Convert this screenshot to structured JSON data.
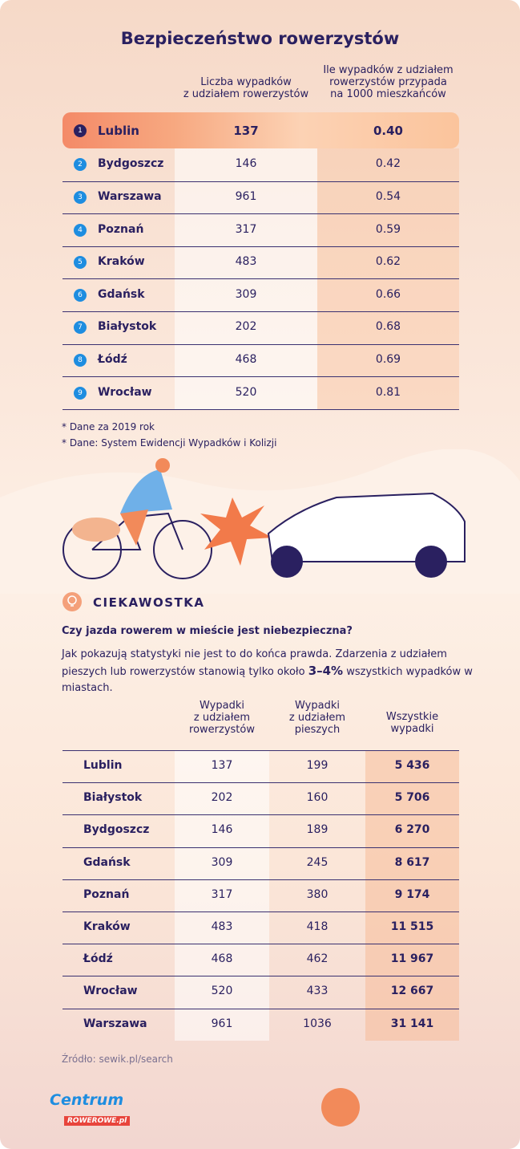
{
  "title": "Bezpieczeństwo rowerzystów",
  "table1": {
    "headers": [
      [
        "Liczba wypadków",
        "z udziałem rowerzystów"
      ],
      [
        "Ile wypadków  z udziałem",
        "rowerzystów przypada",
        "na 1000 mieszkańców"
      ]
    ],
    "rows": [
      [
        "1",
        "Lublin",
        "137",
        "0.40"
      ],
      [
        "2",
        "Bydgoszcz",
        "146",
        "0.42"
      ],
      [
        "3",
        "Warszawa",
        "961",
        "0.54"
      ],
      [
        "4",
        "Poznań",
        "317",
        "0.59"
      ],
      [
        "5",
        "Kraków",
        "483",
        "0.62"
      ],
      [
        "6",
        "Gdańsk",
        "309",
        "0.66"
      ],
      [
        "7",
        "Białystok",
        "202",
        "0.68"
      ],
      [
        "8",
        "Łódź",
        "468",
        "0.69"
      ],
      [
        "9",
        "Wrocław",
        "520",
        "0.81"
      ]
    ]
  },
  "notes": [
    "* Dane za 2019 rok",
    "* Dane: System Ewidencji Wypadków i Kolizji"
  ],
  "fact": {
    "heading": "CIEKAWOSTKA",
    "question": "Czy jazda rowerem w mieście jest niebezpieczna?",
    "text_before": "Jak pokazują statystyki nie jest to do końca prawda. Zdarzenia z udziałem pieszych lub rowerzystów stanowią tylko około ",
    "highlight": "3–4%",
    "text_after": " wszystkich wypadków w miastach."
  },
  "table2": {
    "headers": [
      [
        "Wypadki",
        "z udziałem",
        "rowerzystów"
      ],
      [
        "Wypadki",
        "z udziałem",
        "pieszych"
      ],
      [
        "Wszystkie",
        "wypadki"
      ]
    ],
    "rows": [
      [
        "Lublin",
        "137",
        "199",
        "5 436"
      ],
      [
        "Białystok",
        "202",
        "160",
        "5 706"
      ],
      [
        "Bydgoszcz",
        "146",
        "189",
        "6 270"
      ],
      [
        "Gdańsk",
        "309",
        "245",
        "8 617"
      ],
      [
        "Poznań",
        "317",
        "380",
        "9 174"
      ],
      [
        "Kraków",
        "483",
        "418",
        "11 515"
      ],
      [
        "Łódź",
        "468",
        "462",
        "11 967"
      ],
      [
        "Wrocław",
        "520",
        "433",
        "12 667"
      ],
      [
        "Warszawa",
        "961",
        "1036",
        "31 141"
      ]
    ]
  },
  "source": "Źródło: sewik.pl/search",
  "logo": {
    "line1": "Centrum",
    "line2": "ROWEROWE.pl"
  }
}
